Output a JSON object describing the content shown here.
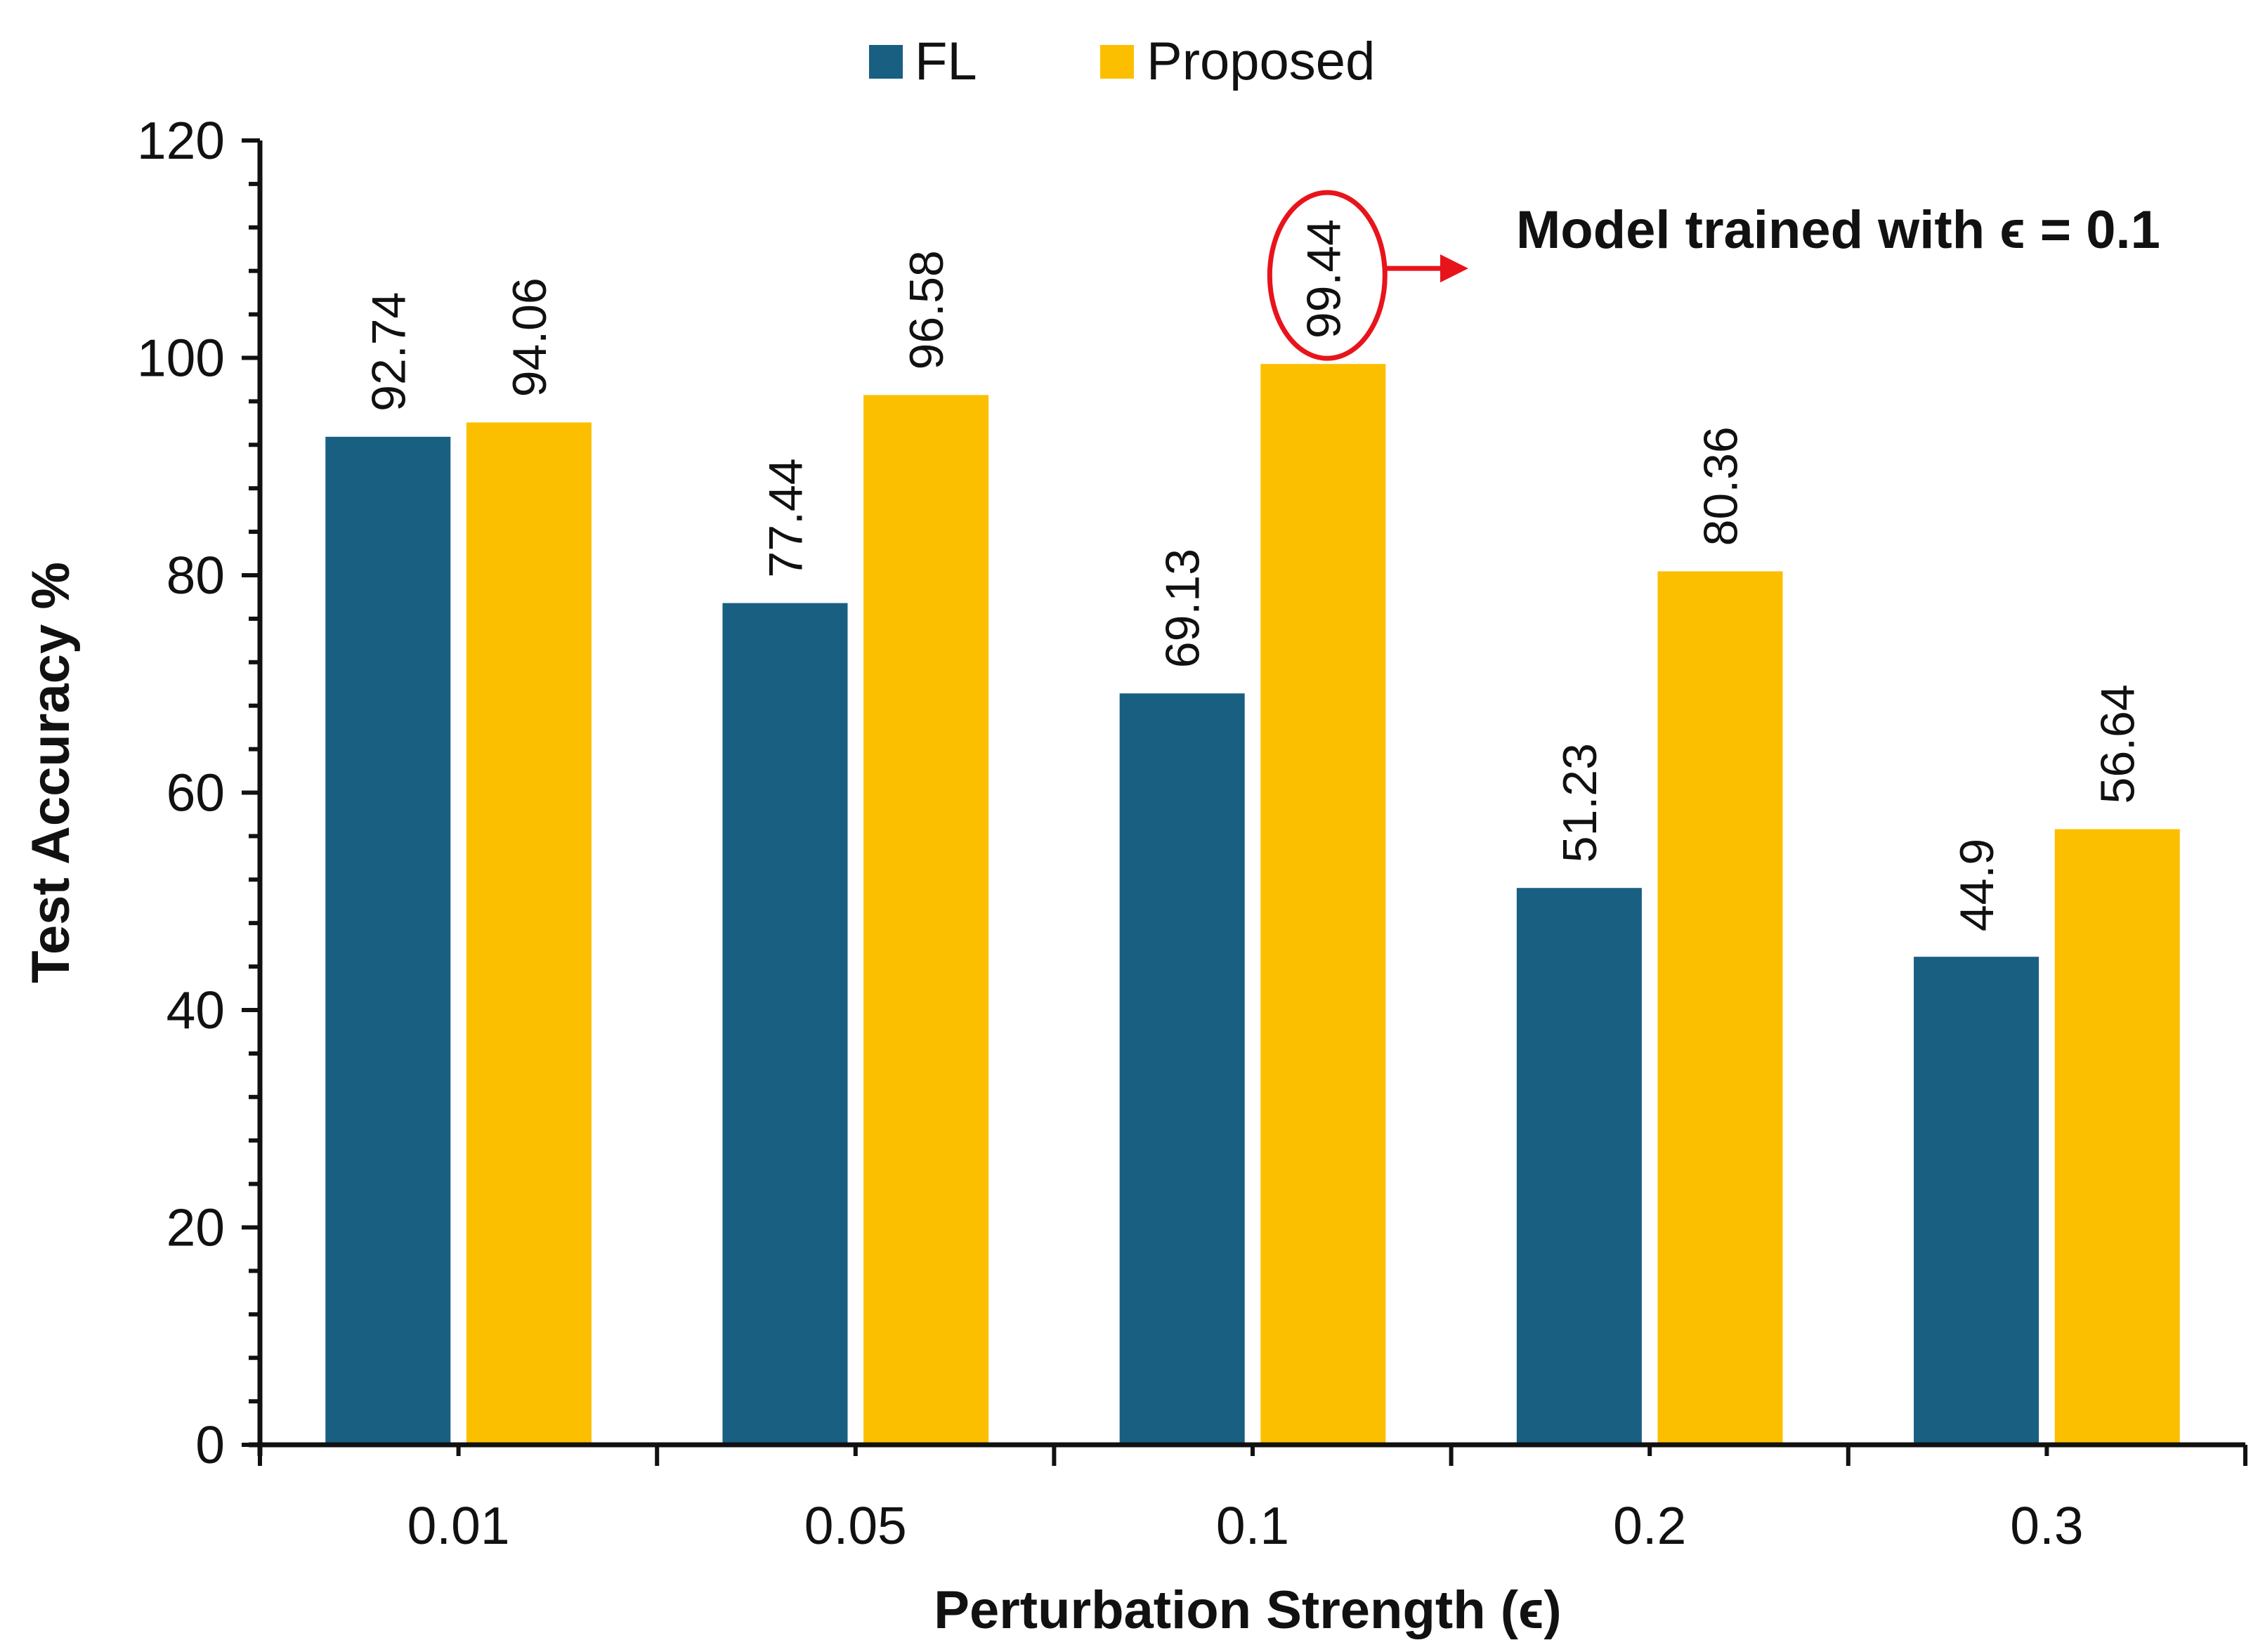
{
  "chart_data": {
    "type": "bar",
    "categories": [
      "0.01",
      "0.05",
      "0.1",
      "0.2",
      "0.3"
    ],
    "series": [
      {
        "name": "FL",
        "color": "#195f82",
        "values": [
          92.74,
          77.44,
          69.13,
          51.23,
          44.9
        ]
      },
      {
        "name": "Proposed",
        "color": "#fcbf00",
        "values": [
          94.06,
          96.58,
          99.44,
          80.36,
          56.64
        ]
      }
    ],
    "data_labels": [
      [
        "92.74",
        "77.44",
        "69.13",
        "51.23",
        "44.9"
      ],
      [
        "94.06",
        "96.58",
        "99.44",
        "80.36",
        "56.64"
      ]
    ],
    "xlabel": "Perturbation Strength (ϵ)",
    "ylabel": "Test Accuracy %",
    "ylim": [
      0,
      120
    ],
    "yticks": [
      "0",
      "20",
      "40",
      "60",
      "80",
      "100",
      "120"
    ],
    "grid": false,
    "legend_position": "top-center",
    "annotation": {
      "text": "Model trained with ϵ = 0.1",
      "highlight_series": 1,
      "highlight_category": 2,
      "color": "#e8141b"
    }
  }
}
